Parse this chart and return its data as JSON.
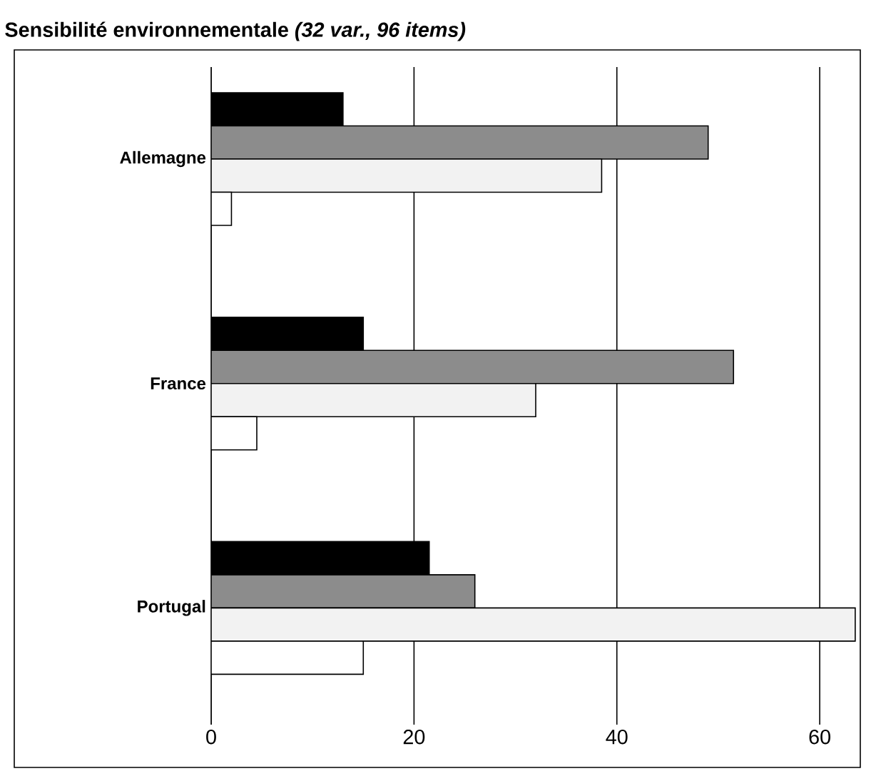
{
  "chart_data": {
    "type": "bar",
    "title": "Sensibilité environnementale *(32 var., 96 items)*",
    "orientation": "horizontal",
    "categories": [
      "Allemagne",
      "France",
      "Portugal"
    ],
    "series": [
      {
        "color": "#000000",
        "values": [
          13,
          15,
          21.5
        ]
      },
      {
        "color": "#8c8c8c",
        "values": [
          49,
          51.5,
          26
        ]
      },
      {
        "color": "#f2f2f2",
        "values": [
          38.5,
          32,
          63.5
        ]
      },
      {
        "color": "#ffffff",
        "values": [
          2,
          4.5,
          15
        ]
      }
    ],
    "xlim": [
      0,
      64
    ],
    "xticks": [
      0,
      20,
      40,
      60
    ],
    "grid": "x"
  }
}
